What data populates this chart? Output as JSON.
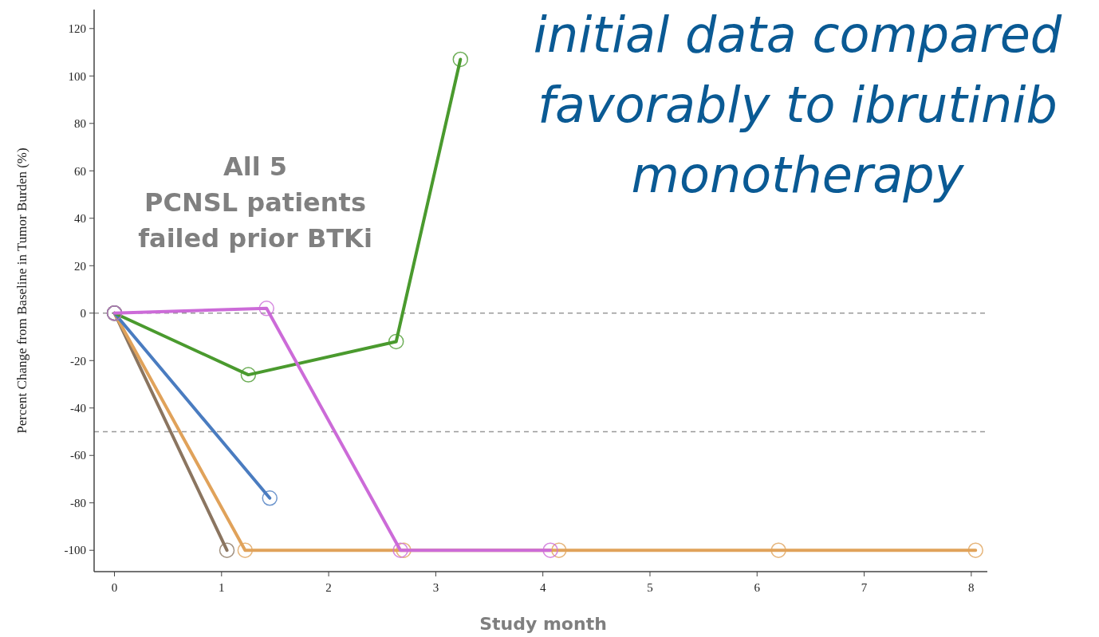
{
  "chart_data": {
    "type": "line",
    "title": "initial data compared\nfavorably to ibrutinib\nmonotherapy",
    "xlabel": "Study month",
    "ylabel": "Percent Change from Baseline in Tumor Burden (%)",
    "annotations": [
      "All 5\nPCNSL patients\nfailed prior BTKi"
    ],
    "xlim": [
      -0.19,
      8.15
    ],
    "xticks": [
      0,
      1,
      2,
      3,
      4,
      5,
      6,
      7,
      8
    ],
    "ylim": [
      -109,
      128
    ],
    "yticks": [
      -100,
      -80,
      -60,
      -40,
      -20,
      0,
      20,
      40,
      60,
      80,
      100,
      120
    ],
    "marker": "circle",
    "grid": false,
    "ref_lines": [
      {
        "axis": "y",
        "value": 0,
        "color": "#999999",
        "line_style": "dashed"
      },
      {
        "axis": "y",
        "value": -50,
        "color": "#999999",
        "line_style": "dashed"
      }
    ],
    "series": [
      {
        "color": "#8b7560",
        "x": [
          0,
          1.05
        ],
        "values": [
          0,
          -100
        ]
      },
      {
        "color": "#e0a25a",
        "x": [
          0,
          1.22,
          2.7,
          4.15,
          6.2,
          8.04
        ],
        "values": [
          0,
          -100,
          -100,
          -100,
          -100,
          -100
        ]
      },
      {
        "color": "#4a7cc0",
        "x": [
          0,
          1.45
        ],
        "values": [
          0,
          -78
        ]
      },
      {
        "color": "#4a9a2e",
        "x": [
          0,
          1.25,
          2.63,
          3.23
        ],
        "values": [
          0,
          -26,
          -12,
          107
        ]
      },
      {
        "color": "#cc6bd8",
        "x": [
          0,
          1.42,
          2.67,
          4.07
        ],
        "values": [
          0,
          2,
          -100,
          -100
        ]
      }
    ]
  }
}
